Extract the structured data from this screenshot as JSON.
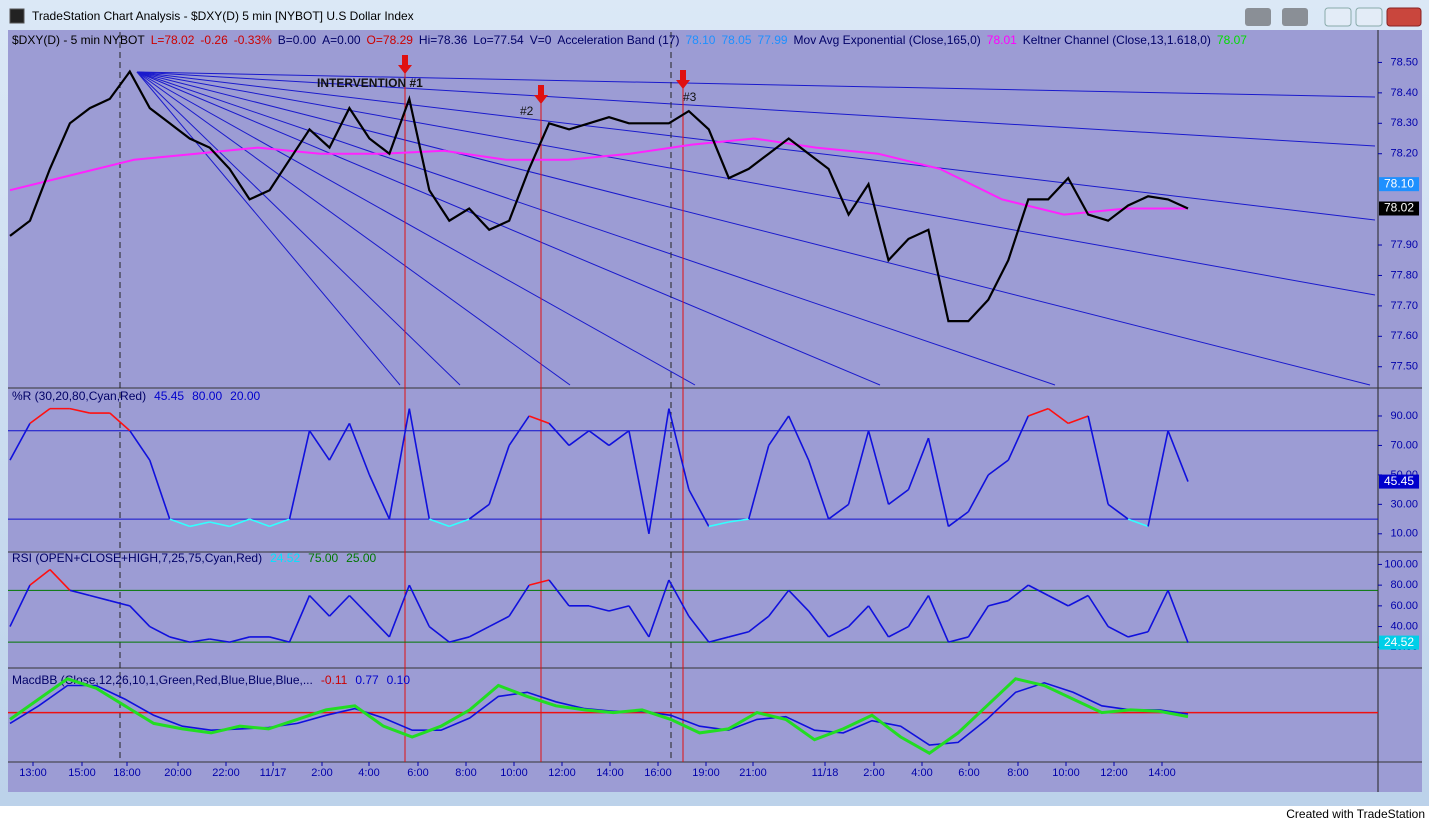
{
  "window": {
    "title": "TradeStation Chart Analysis - $DXY(D) 5 min [NYBOT] U.S Dollar Index"
  },
  "header": [
    {
      "text": "$DXY(D) - 5 min  NYBOT",
      "color": "#000000"
    },
    {
      "text": "L=78.02",
      "color": "#cc0000"
    },
    {
      "text": "-0.26",
      "color": "#cc0000"
    },
    {
      "text": "-0.33%",
      "color": "#cc0000"
    },
    {
      "text": "B=0.00",
      "color": "#000066"
    },
    {
      "text": "A=0.00",
      "color": "#000066"
    },
    {
      "text": "O=78.29",
      "color": "#cc0000"
    },
    {
      "text": "Hi=78.36",
      "color": "#000066"
    },
    {
      "text": "Lo=77.54",
      "color": "#000066"
    },
    {
      "text": "V=0",
      "color": "#000066"
    },
    {
      "text": "Acceleration Band (17)",
      "color": "#000066"
    },
    {
      "text": "78.10",
      "color": "#1e90ff"
    },
    {
      "text": "78.05",
      "color": "#1e90ff"
    },
    {
      "text": "77.99",
      "color": "#1e90ff"
    },
    {
      "text": "Mov Avg Exponential (Close,165,0)",
      "color": "#000066"
    },
    {
      "text": "78.01",
      "color": "#ff00ff"
    },
    {
      "text": "Keltner Channel (Close,13,1.618,0)",
      "color": "#000066"
    },
    {
      "text": "78.07",
      "color": "#00dd00"
    }
  ],
  "annotations": [
    {
      "text": "INTERVENTION  #1"
    },
    {
      "text": "#2"
    },
    {
      "text": "#3"
    }
  ],
  "price": {
    "ylim": [
      77.44,
      78.6
    ],
    "yticks": [
      {
        "value": 78.5,
        "label": "78.50"
      },
      {
        "value": 78.4,
        "label": "78.40"
      },
      {
        "value": 78.3,
        "label": "78.30"
      },
      {
        "value": 78.2,
        "label": "78.20"
      },
      {
        "value": 77.9,
        "label": "77.90"
      },
      {
        "value": 77.8,
        "label": "77.80"
      },
      {
        "value": 77.7,
        "label": "77.70"
      },
      {
        "value": 77.6,
        "label": "77.60"
      },
      {
        "value": 77.5,
        "label": "77.50"
      }
    ],
    "tags": [
      {
        "value": 78.1,
        "label": "78.10",
        "color": "#1e90ff"
      },
      {
        "value": 78.02,
        "label": "78.02",
        "color": "#000000"
      }
    ],
    "values": [
      77.93,
      77.98,
      78.15,
      78.3,
      78.35,
      78.38,
      78.47,
      78.35,
      78.3,
      78.25,
      78.22,
      78.15,
      78.05,
      78.08,
      78.18,
      78.28,
      78.22,
      78.35,
      78.25,
      78.2,
      78.38,
      78.08,
      77.98,
      78.02,
      77.95,
      77.98,
      78.15,
      78.3,
      78.28,
      78.3,
      78.32,
      78.3,
      78.3,
      78.3,
      78.34,
      78.28,
      78.12,
      78.15,
      78.2,
      78.25,
      78.2,
      78.15,
      78.0,
      78.1,
      77.85,
      77.92,
      77.95,
      77.65,
      77.65,
      77.72,
      77.85,
      78.05,
      78.05,
      78.12,
      78.0,
      77.98,
      78.03,
      78.06,
      78.05,
      78.02
    ],
    "ema": [
      78.08,
      78.13,
      78.18,
      78.2,
      78.22,
      78.2,
      78.2,
      78.21,
      78.18,
      78.18,
      78.2,
      78.23,
      78.25,
      78.22,
      78.2,
      78.15,
      78.05,
      78.0,
      78.02,
      78.02
    ]
  },
  "pctr": {
    "label": "%R (30,20,80,Cyan,Red)",
    "readouts": [
      {
        "text": "45.45",
        "color": "#0000cc"
      },
      {
        "text": "80.00",
        "color": "#0000cc"
      },
      {
        "text": "20.00",
        "color": "#0000cc"
      }
    ],
    "ylim": [
      -1,
      109
    ],
    "levels": [
      80,
      20
    ],
    "yticks": [
      {
        "value": 90,
        "label": "90.00"
      },
      {
        "value": 70,
        "label": "70.00"
      },
      {
        "value": 50,
        "label": "50.00"
      },
      {
        "value": 30,
        "label": "30.00"
      },
      {
        "value": 10,
        "label": "10.00"
      }
    ],
    "tag": {
      "value": 45.45,
      "label": "45.45",
      "color": "#0000cc"
    },
    "values": [
      60,
      85,
      95,
      95,
      92,
      92,
      80,
      60,
      20,
      15,
      18,
      15,
      20,
      15,
      20,
      80,
      60,
      85,
      50,
      20,
      95,
      20,
      15,
      20,
      30,
      70,
      90,
      85,
      70,
      80,
      70,
      80,
      10,
      95,
      40,
      15,
      18,
      20,
      70,
      90,
      60,
      20,
      30,
      80,
      30,
      40,
      75,
      15,
      25,
      50,
      60,
      90,
      95,
      85,
      90,
      30,
      20,
      15,
      80,
      45.45
    ]
  },
  "rsi": {
    "label": "RSI (OPEN+CLOSE+HIGH,7,25,75,Cyan,Red)",
    "readouts": [
      {
        "text": "24.52",
        "color": "#00e5ff"
      },
      {
        "text": "75.00",
        "color": "#007700"
      },
      {
        "text": "25.00",
        "color": "#007700"
      }
    ],
    "ylim": [
      0,
      112
    ],
    "levels": [
      75,
      25
    ],
    "yticks": [
      {
        "value": 100,
        "label": "100.00"
      },
      {
        "value": 80,
        "label": "80.00"
      },
      {
        "value": 60,
        "label": "60.00"
      },
      {
        "value": 40,
        "label": "40.00"
      },
      {
        "value": 20,
        "label": "20.00"
      }
    ],
    "tag": {
      "value": 24.52,
      "label": "24.52",
      "color": "#00cfe8"
    },
    "values": [
      40,
      80,
      95,
      75,
      70,
      65,
      60,
      40,
      30,
      25,
      28,
      25,
      30,
      30,
      25,
      70,
      50,
      70,
      50,
      30,
      80,
      40,
      25,
      30,
      40,
      50,
      80,
      85,
      60,
      60,
      55,
      60,
      30,
      85,
      50,
      25,
      30,
      35,
      50,
      75,
      55,
      30,
      40,
      60,
      30,
      40,
      70,
      25,
      30,
      60,
      65,
      80,
      70,
      60,
      70,
      40,
      30,
      35,
      75,
      24.52
    ]
  },
  "macd": {
    "label": "MacdBB (Close,12,26,10,1,Green,Red,Blue,Blue,Blue,...",
    "readouts": [
      {
        "text": "-0.11",
        "color": "#cc0000"
      },
      {
        "text": "0.77",
        "color": "#0000cc"
      },
      {
        "text": "0.10",
        "color": "#0000cc"
      }
    ],
    "ylim": [
      -0.35,
      0.3
    ],
    "values": [
      -0.05,
      0.1,
      0.25,
      0.18,
      0.05,
      -0.08,
      -0.12,
      -0.15,
      -0.1,
      -0.12,
      -0.05,
      0.02,
      0.05,
      -0.1,
      -0.18,
      -0.1,
      0.02,
      0.2,
      0.12,
      0.05,
      0.02,
      0.0,
      0.02,
      -0.05,
      -0.15,
      -0.12,
      0.0,
      -0.05,
      -0.2,
      -0.12,
      -0.02,
      -0.18,
      -0.3,
      -0.15,
      0.05,
      0.25,
      0.2,
      0.1,
      0.0,
      0.02,
      0.01,
      -0.03
    ],
    "signal": [
      -0.08,
      0.05,
      0.2,
      0.2,
      0.1,
      -0.02,
      -0.1,
      -0.13,
      -0.12,
      -0.11,
      -0.08,
      -0.02,
      0.03,
      -0.04,
      -0.13,
      -0.13,
      -0.04,
      0.12,
      0.15,
      0.08,
      0.03,
      0.01,
      0.01,
      -0.02,
      -0.1,
      -0.13,
      -0.05,
      -0.03,
      -0.13,
      -0.15,
      -0.06,
      -0.1,
      -0.24,
      -0.22,
      -0.05,
      0.15,
      0.22,
      0.15,
      0.05,
      0.02,
      0.02,
      -0.01
    ]
  },
  "xaxis": [
    "13:00",
    "15:00",
    "18:00",
    "20:00",
    "22:00",
    "11/17",
    "2:00",
    "4:00",
    "6:00",
    "8:00",
    "10:00",
    "12:00",
    "14:00",
    "16:00",
    "19:00",
    "21:00",
    "11/18",
    "2:00",
    "4:00",
    "6:00",
    "8:00",
    "10:00",
    "12:00",
    "14:00"
  ],
  "footer": "Created with TradeStation"
}
